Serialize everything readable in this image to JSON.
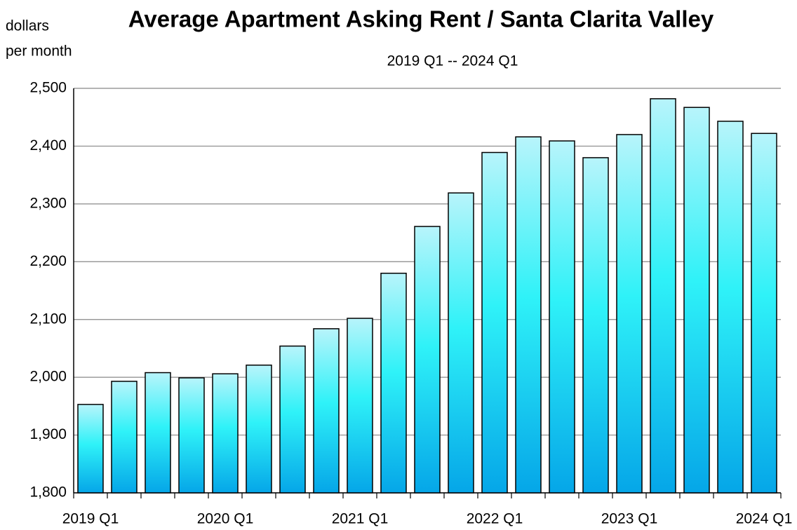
{
  "chart_data": {
    "type": "bar",
    "title": "Average Apartment Asking Rent / Santa Clarita Valley",
    "subtitle": "2019 Q1 -- 2024 Q1",
    "y_label_lines": [
      "dollars",
      "per month"
    ],
    "categories": [
      "2019 Q1",
      null,
      null,
      null,
      "2020 Q1",
      null,
      null,
      null,
      "2021 Q1",
      null,
      null,
      null,
      "2022 Q1",
      null,
      null,
      null,
      "2023 Q1",
      null,
      null,
      null,
      "2024 Q1"
    ],
    "values": [
      1953,
      1993,
      2008,
      1999,
      2006,
      2021,
      2054,
      2084,
      2102,
      2180,
      2261,
      2319,
      2389,
      2416,
      2409,
      2380,
      2420,
      2482,
      2467,
      2443,
      2422
    ],
    "ylim": [
      1800,
      2500
    ],
    "yticks": [
      {
        "value": 1800,
        "label": "1,800"
      },
      {
        "value": 1900,
        "label": "1,900"
      },
      {
        "value": 2000,
        "label": "2,000"
      },
      {
        "value": 2100,
        "label": "2,100"
      },
      {
        "value": 2200,
        "label": "2,200"
      },
      {
        "value": 2300,
        "label": "2,300"
      },
      {
        "value": 2400,
        "label": "2,400"
      },
      {
        "value": 2500,
        "label": "2,500"
      }
    ],
    "grid": true
  }
}
